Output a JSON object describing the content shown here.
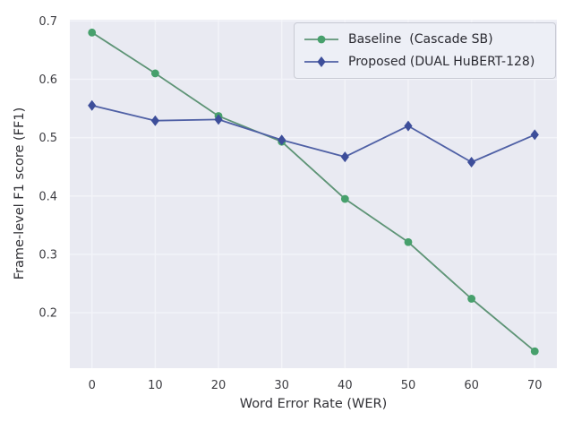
{
  "chart_data": {
    "type": "line",
    "title": "",
    "xlabel": "Word Error Rate (WER)",
    "ylabel": "Frame-level F1 score (FF1)",
    "x": [
      0,
      10,
      20,
      30,
      40,
      50,
      60,
      70
    ],
    "series": [
      {
        "id": "baseline",
        "name": "Baseline  (Cascade SB)",
        "marker": "circle",
        "color": "#47a06c",
        "line_color": "#5e9476",
        "values": [
          0.68,
          0.61,
          0.537,
          0.493,
          0.395,
          0.321,
          0.224,
          0.134
        ]
      },
      {
        "id": "proposed",
        "name": "Proposed (DUAL HuBERT-128)",
        "marker": "diamond",
        "color": "#3d4e9a",
        "line_color": "#4f60a5",
        "values": [
          0.555,
          0.529,
          0.531,
          0.496,
          0.467,
          0.52,
          0.458,
          0.505
        ]
      }
    ],
    "xticks": [
      0,
      10,
      20,
      30,
      40,
      50,
      60,
      70
    ],
    "yticks": [
      0.2,
      0.3,
      0.4,
      0.5,
      0.6,
      0.7
    ],
    "xlim": [
      -3.5,
      73.5
    ],
    "ylim": [
      0.105,
      0.702
    ],
    "grid": true,
    "legend_position": "upper right"
  },
  "style": {
    "figure_bg": "#ffffff",
    "plot_bg": "#e9eaf2",
    "grid_color": "#f3f4f9",
    "tick_label_color": "#3d3d42",
    "axis_label_color": "#303035",
    "legend_bg": "#edeff6",
    "legend_border": "#c9cbd4",
    "legend_text": "#2a2a31"
  }
}
